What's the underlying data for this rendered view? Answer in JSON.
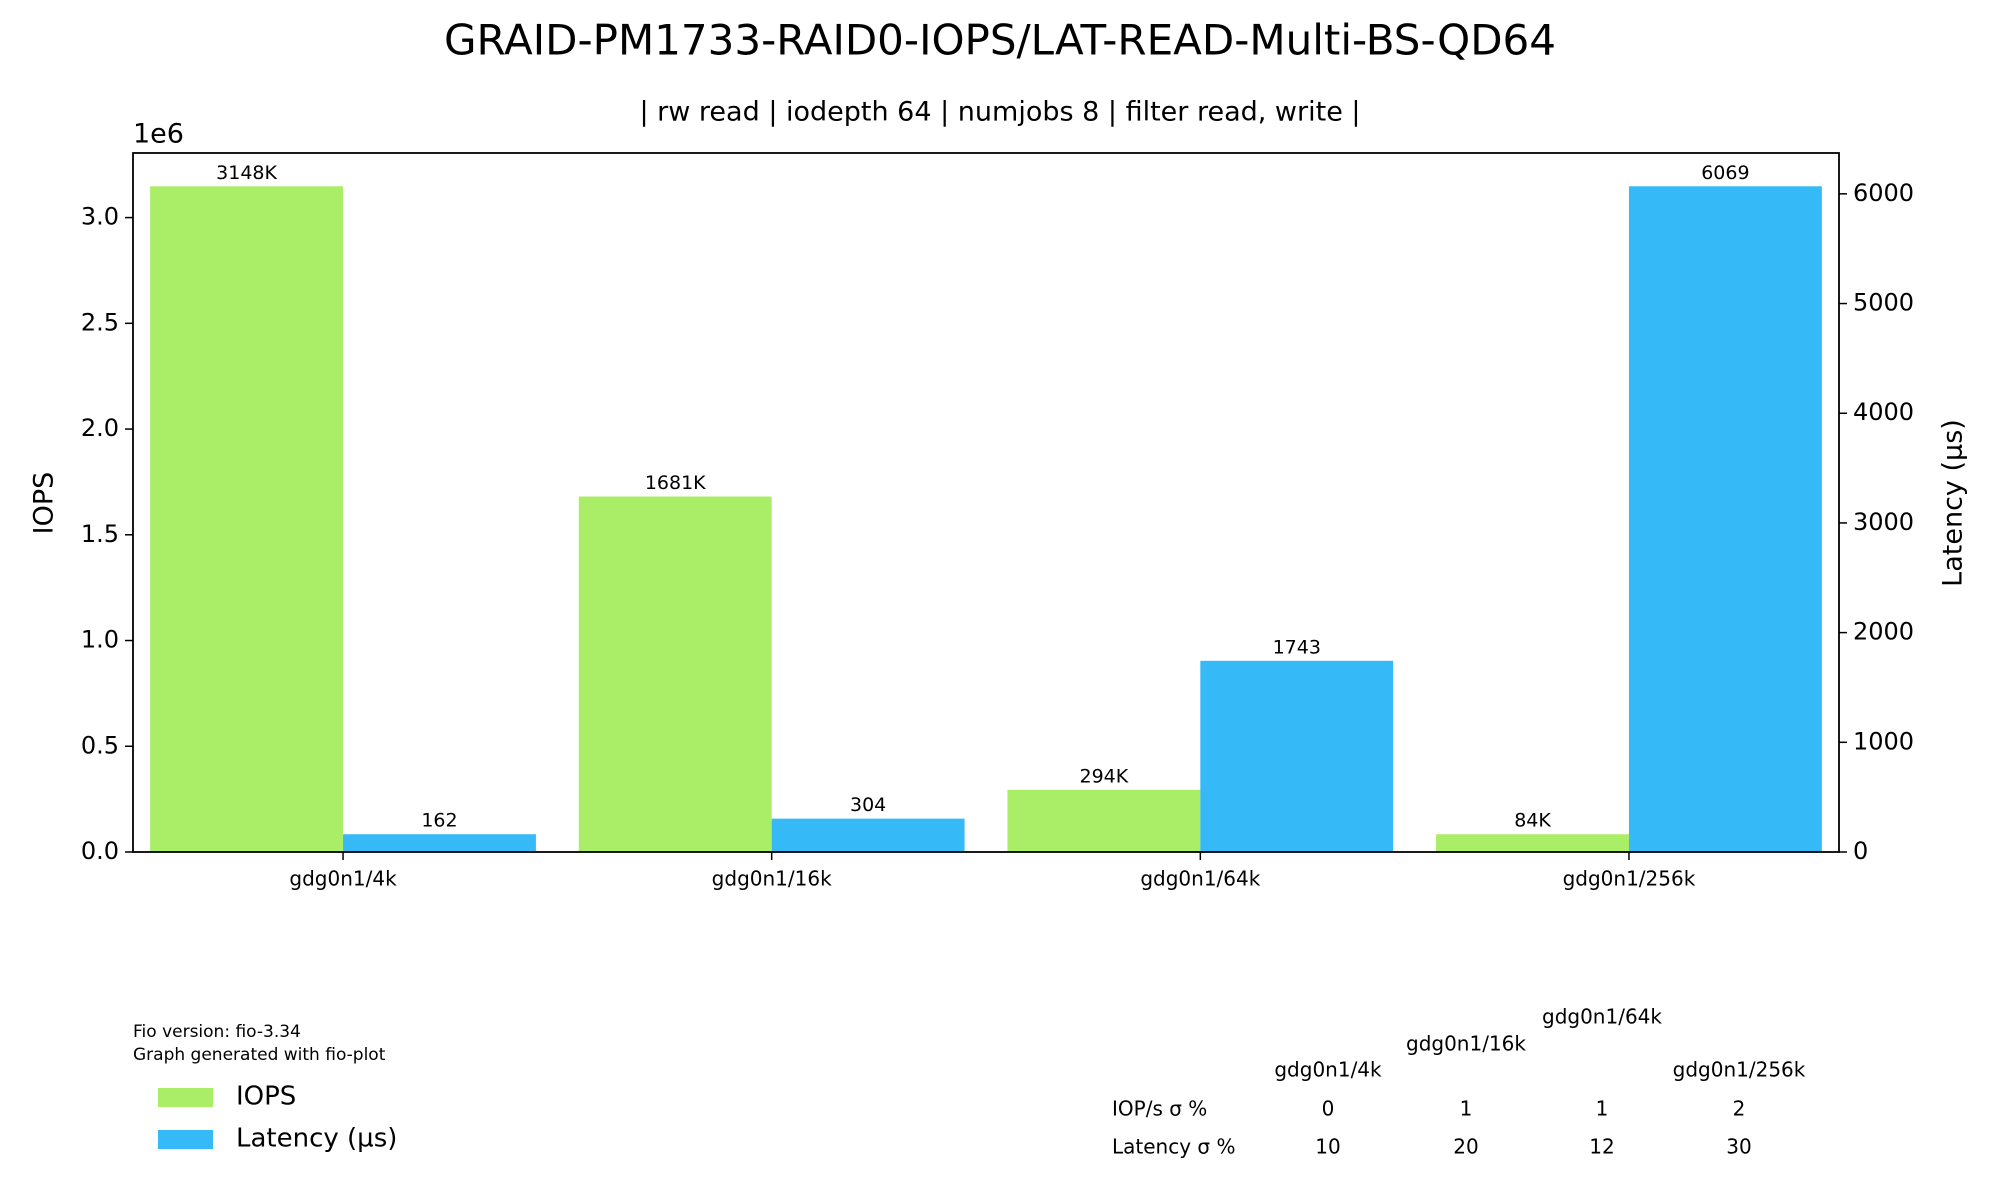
{
  "chart_data": {
    "type": "bar",
    "title": "GRAID-PM1733-RAID0-IOPS/LAT-READ-Multi-BS-QD64",
    "subtitle": "| rw read | iodepth 64 | numjobs 8 | filter read, write |",
    "ylabel": "IOPS",
    "y2label": "Latency (µs)",
    "y_offset_label": "1e6",
    "categories": [
      "gdg0n1/4k",
      "gdg0n1/16k",
      "gdg0n1/64k",
      "gdg0n1/256k"
    ],
    "series": [
      {
        "name": "IOPS",
        "color": "#aaed66",
        "values": [
          3148000,
          1681000,
          294000,
          84000
        ],
        "value_labels": [
          "3148K",
          "1681K",
          "294K",
          "84K"
        ]
      },
      {
        "name": "Latency (µs)",
        "color": "#35baf7",
        "axis": "y2",
        "values": [
          162,
          304,
          1743,
          6069
        ]
      }
    ],
    "ylim": [
      0,
      3305400
    ],
    "yticks": [
      {
        "value": 0,
        "label": "0.0"
      },
      {
        "value": 500000,
        "label": "0.5"
      },
      {
        "value": 1000000,
        "label": "1.0"
      },
      {
        "value": 1500000,
        "label": "1.5"
      },
      {
        "value": 2000000,
        "label": "2.0"
      },
      {
        "value": 2500000,
        "label": "2.5"
      },
      {
        "value": 3000000,
        "label": "3.0"
      }
    ],
    "y2lim": [
      0,
      6372.45
    ],
    "y2ticks": [
      0,
      1000,
      2000,
      3000,
      4000,
      5000,
      6000
    ],
    "footnotes": [
      "Fio version: fio-3.34",
      "Graph generated with fio-plot"
    ],
    "legend": "lower left",
    "table": {
      "columns": [
        "gdg0n1/4k",
        "gdg0n1/16k",
        "gdg0n1/64k",
        "gdg0n1/256k"
      ],
      "rows": [
        {
          "label": "IOP/s σ %",
          "values": [
            0,
            1,
            1,
            2
          ]
        },
        {
          "label": "Latency σ %",
          "values": [
            10,
            20,
            12,
            30
          ]
        }
      ]
    }
  }
}
